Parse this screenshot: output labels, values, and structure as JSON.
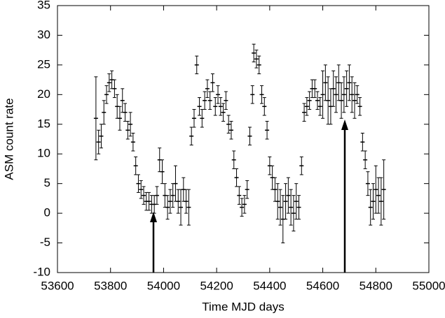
{
  "chart_data": {
    "type": "scatter",
    "x_label": "Time MJD days",
    "y_label": "ASM count rate",
    "xlim": [
      53600,
      55000
    ],
    "xticks": [
      53600,
      53800,
      54000,
      54200,
      54400,
      54600,
      54800,
      55000
    ],
    "ylim": [
      -10,
      35
    ],
    "yticks": [
      -10,
      -5,
      0,
      5,
      10,
      15,
      20,
      25,
      30,
      35
    ],
    "color": "#000000",
    "x": [
      53745,
      53755,
      53765,
      53775,
      53785,
      53795,
      53805,
      53815,
      53825,
      53835,
      53845,
      53855,
      53865,
      53875,
      53885,
      53895,
      53905,
      53915,
      53925,
      53935,
      53945,
      53955,
      53965,
      53975,
      53985,
      53995,
      54005,
      54015,
      54025,
      54035,
      54045,
      54055,
      54065,
      54075,
      54085,
      54095,
      54105,
      54115,
      54125,
      54135,
      54145,
      54155,
      54165,
      54175,
      54185,
      54195,
      54205,
      54215,
      54225,
      54235,
      54245,
      54255,
      54265,
      54275,
      54285,
      54295,
      54305,
      54315,
      54325,
      54335,
      54340,
      54350,
      54360,
      54370,
      54380,
      54390,
      54400,
      54410,
      54420,
      54430,
      54440,
      54450,
      54460,
      54470,
      54480,
      54490,
      54500,
      54510,
      54520,
      54530,
      54540,
      54550,
      54560,
      54570,
      54580,
      54590,
      54600,
      54610,
      54620,
      54630,
      54640,
      54650,
      54660,
      54670,
      54680,
      54690,
      54700,
      54710,
      54720,
      54730,
      54740,
      54750,
      54760,
      54770,
      54780,
      54790,
      54800,
      54810,
      54820,
      54830
    ],
    "values": [
      16,
      12,
      13,
      17,
      20,
      22,
      22.5,
      21,
      18,
      16,
      19,
      17,
      14,
      15,
      12,
      8,
      5,
      4,
      3,
      2,
      2,
      1.5,
      1.5,
      3,
      9,
      7,
      3,
      1,
      2,
      3,
      5,
      2,
      1,
      4,
      2,
      1,
      13,
      16,
      25,
      18,
      16,
      19,
      21,
      19,
      22,
      18,
      20,
      18,
      17,
      19,
      15,
      14,
      9,
      6,
      3,
      1,
      1.5,
      4,
      13,
      20,
      27,
      26,
      25,
      20,
      18,
      14,
      8,
      6,
      4,
      2,
      1,
      -1,
      2,
      3,
      1,
      0,
      2,
      1,
      8,
      17,
      18,
      19,
      21,
      21,
      19,
      18,
      20,
      22,
      19,
      18,
      21,
      20,
      22,
      19,
      20,
      21,
      22,
      20,
      19,
      20,
      18,
      12,
      9,
      5,
      1,
      2,
      4,
      3,
      2,
      4
    ],
    "errors": [
      7,
      2,
      2,
      2,
      1.5,
      1.5,
      1.5,
      1.5,
      2,
      2,
      2,
      1.5,
      1.5,
      2,
      1.5,
      1.5,
      1.5,
      1.5,
      1.5,
      1.5,
      1.5,
      1.5,
      1.5,
      1.5,
      2,
      2,
      2,
      2,
      2,
      2,
      3,
      2,
      3,
      2,
      2,
      3,
      1.5,
      1.5,
      1.5,
      1.5,
      1.5,
      1.5,
      1.5,
      1.5,
      1.5,
      1.5,
      1.5,
      1.5,
      1.5,
      1.5,
      1.5,
      1.5,
      1.5,
      1.5,
      1.5,
      1.5,
      1.5,
      1.5,
      1.5,
      1.5,
      1.5,
      1.5,
      1.5,
      1.5,
      1.5,
      1.5,
      1.5,
      2,
      2,
      3,
      3,
      4,
      3,
      3,
      3,
      3,
      3,
      2,
      1.5,
      1.5,
      1.5,
      1.5,
      1.5,
      1.5,
      1.5,
      1.5,
      4,
      3,
      4,
      3,
      3,
      3,
      3,
      3,
      3,
      3,
      3,
      3,
      3,
      1.5,
      1.5,
      1.5,
      1.5,
      2,
      3,
      3,
      4,
      3,
      4,
      5
    ]
  }
}
